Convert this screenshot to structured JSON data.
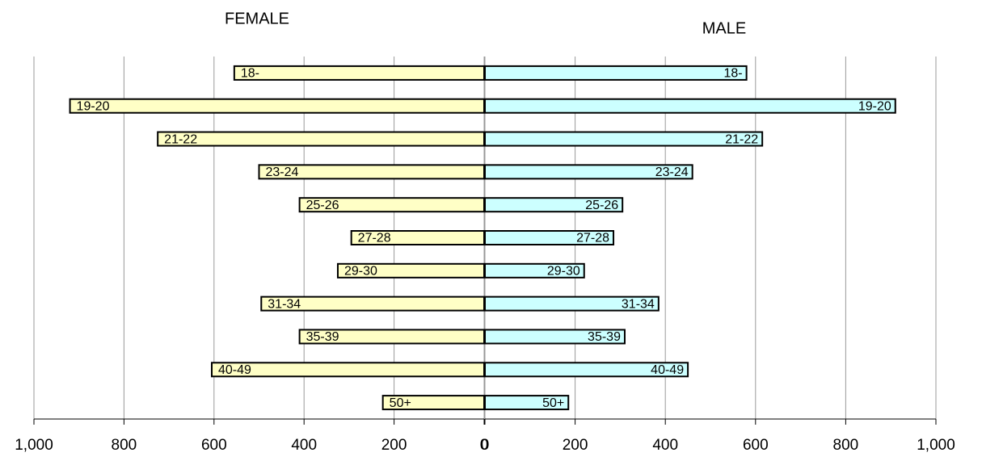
{
  "chart_data": [
    {
      "type": "bar",
      "orientation": "horizontal",
      "title": "FEMALE",
      "categories": [
        "18-",
        "19-20",
        "21-22",
        "23-24",
        "25-26",
        "27-28",
        "29-30",
        "31-34",
        "35-39",
        "40-49",
        "50+"
      ],
      "values": [
        555,
        920,
        725,
        500,
        410,
        295,
        325,
        495,
        410,
        605,
        225
      ],
      "color": "#ffffc6",
      "xlim": [
        1000,
        0
      ],
      "xticks": [
        {
          "value": 1000,
          "label": "1,000"
        },
        800,
        600,
        400,
        200,
        0
      ],
      "grid": true
    },
    {
      "type": "bar",
      "orientation": "horizontal",
      "title": "MALE",
      "categories": [
        "18-",
        "19-20",
        "21-22",
        "23-24",
        "25-26",
        "27-28",
        "29-30",
        "31-34",
        "35-39",
        "40-49",
        "50+"
      ],
      "values": [
        580,
        910,
        615,
        460,
        305,
        285,
        220,
        385,
        310,
        450,
        185
      ],
      "color": "#ccffff",
      "xlim": [
        0,
        1000
      ],
      "xticks": [
        0,
        200,
        400,
        600,
        800,
        {
          "value": 1000,
          "label": "1,000"
        }
      ],
      "grid": true
    }
  ]
}
